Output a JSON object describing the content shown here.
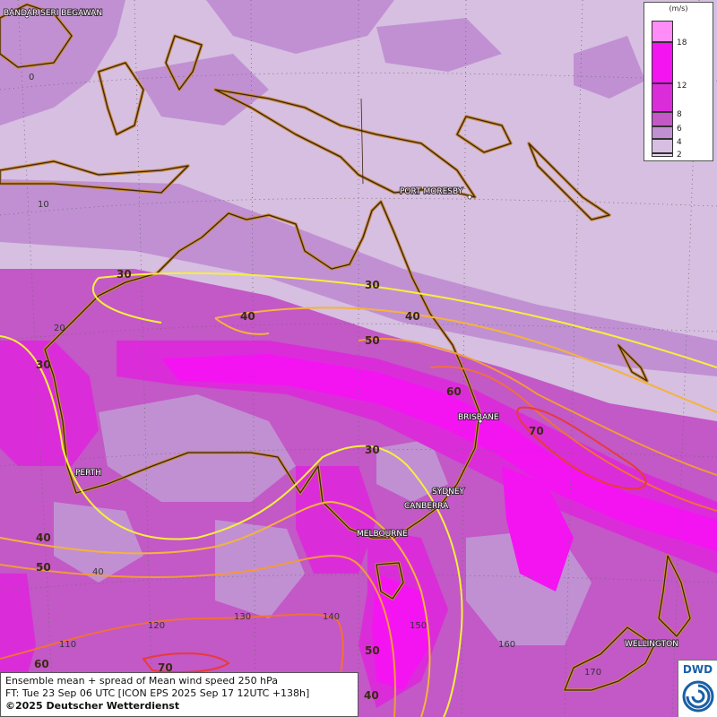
{
  "map": {
    "title": "Ensemble mean + spread of Mean wind speed 250 hPa",
    "forecast_time": "FT: Tue 23 Sep 06 UTC [ICON EPS 2025 Sep 17 12UTC +138h]",
    "copyright": "©2025 Deutscher Wetterdienst",
    "logo": "DWD",
    "legend": {
      "unit": "(m/s)",
      "ticks": [
        "18",
        "12",
        "8",
        "6",
        "4",
        "2"
      ],
      "colors": [
        "#ff8cf7",
        "#f414f2",
        "#da2dd9",
        "#c358c7",
        "#c190d3",
        "#d6bfe0",
        "#e8dcee"
      ]
    },
    "cities": [
      "BANDAR SERI BEGAWAN",
      "PORT MORESBY",
      "BRISBANE",
      "PERTH",
      "SYDNEY",
      "CANBERRA",
      "MELBOURNE",
      "WELLINGTON"
    ],
    "grid_labels": {
      "lat": [
        "0",
        "10",
        "20"
      ],
      "lon": [
        "40",
        "110",
        "120",
        "130",
        "140",
        "150",
        "160",
        "170"
      ]
    },
    "contour_labels": [
      "30",
      "30",
      "30",
      "30",
      "40",
      "40",
      "40",
      "40",
      "50",
      "50",
      "50",
      "60",
      "60",
      "70",
      "70"
    ],
    "colors": {
      "background": "#d6bfe0",
      "contour_30": "#f5f03a",
      "contour_40": "#f4b33a",
      "contour_50": "#f29a3a",
      "contour_60": "#f0703a",
      "contour_70": "#e83a3a",
      "coastline": "#3c2410",
      "coast_glow": "#c88a3a"
    }
  }
}
